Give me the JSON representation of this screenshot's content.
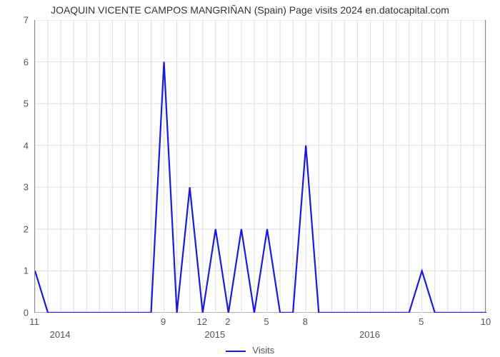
{
  "chart": {
    "type": "line",
    "title": "JOAQUIN VICENTE CAMPOS MANGRIÑAN (Spain) Page visits 2024 en.datocapital.com",
    "title_fontsize": 14,
    "title_color": "#333333",
    "background_color": "#ffffff",
    "grid_color": "#dddddd",
    "axis_color": "#888888",
    "line_color": "#1a1adf",
    "line_width": 2.2,
    "label_color": "#555555",
    "label_fontsize": 13,
    "ylim": [
      0,
      7
    ],
    "ytick_step": 1,
    "xlim": [
      0,
      35
    ],
    "xticks_minor": [
      {
        "pos": 0,
        "label": "11"
      },
      {
        "pos": 10,
        "label": "9"
      },
      {
        "pos": 13,
        "label": "12"
      },
      {
        "pos": 15,
        "label": "2"
      },
      {
        "pos": 18,
        "label": "5"
      },
      {
        "pos": 21,
        "label": "8"
      },
      {
        "pos": 30,
        "label": "5"
      },
      {
        "pos": 35,
        "label": "10"
      }
    ],
    "xticks_major": [
      {
        "pos": 2,
        "label": "2014"
      },
      {
        "pos": 14,
        "label": "2015"
      },
      {
        "pos": 26,
        "label": "2016"
      }
    ],
    "values": [
      1,
      0,
      0,
      0,
      0,
      0,
      0,
      0,
      0,
      0,
      6,
      0,
      3,
      0,
      2,
      0,
      2,
      0,
      2,
      0,
      0,
      4,
      0,
      0,
      0,
      0,
      0,
      0,
      0,
      0,
      1,
      0,
      0,
      0,
      0,
      0
    ],
    "legend_label": "Visits"
  }
}
